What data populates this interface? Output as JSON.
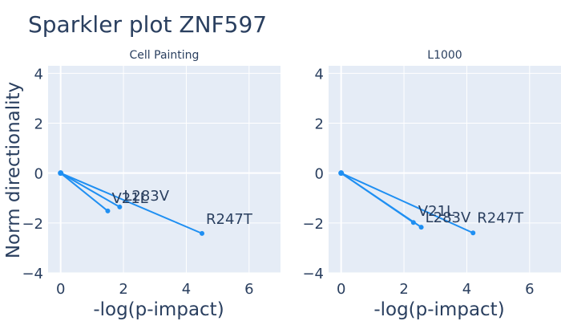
{
  "figure": {
    "title": "Sparkler plot ZNF597",
    "ylabel": "Norm directionality"
  },
  "colors": {
    "plot_bg": "#e5ecf6",
    "grid": "#ffffff",
    "series": "#1f8ff2",
    "text": "#2a3f5f"
  },
  "chart_data": [
    {
      "type": "line",
      "title": "Cell Painting",
      "xlabel": "-log(p-impact)",
      "ylabel": "Norm directionality",
      "xlim": [
        -0.4,
        7
      ],
      "ylim": [
        -4,
        4.3
      ],
      "xticks": [
        0,
        2,
        4,
        6
      ],
      "yticks": [
        -4,
        -2,
        0,
        2,
        4
      ],
      "grid": true,
      "points": [
        {
          "label": "V21L",
          "x": 1.5,
          "y": -1.52
        },
        {
          "label": "L283V",
          "x": 1.88,
          "y": -1.36
        },
        {
          "label": "R247T",
          "x": 4.5,
          "y": -2.42
        }
      ]
    },
    {
      "type": "line",
      "title": "L1000",
      "xlabel": "-log(p-impact)",
      "ylabel": "",
      "xlim": [
        -0.4,
        7
      ],
      "ylim": [
        -4,
        4.3
      ],
      "xticks": [
        0,
        2,
        4,
        6
      ],
      "yticks": [
        -4,
        -2,
        0,
        2,
        4
      ],
      "grid": true,
      "points": [
        {
          "label": "V21L",
          "x": 2.3,
          "y": -1.98
        },
        {
          "label": "L283V",
          "x": 2.55,
          "y": -2.17
        },
        {
          "label": "R247T",
          "x": 4.2,
          "y": -2.4
        }
      ]
    }
  ]
}
